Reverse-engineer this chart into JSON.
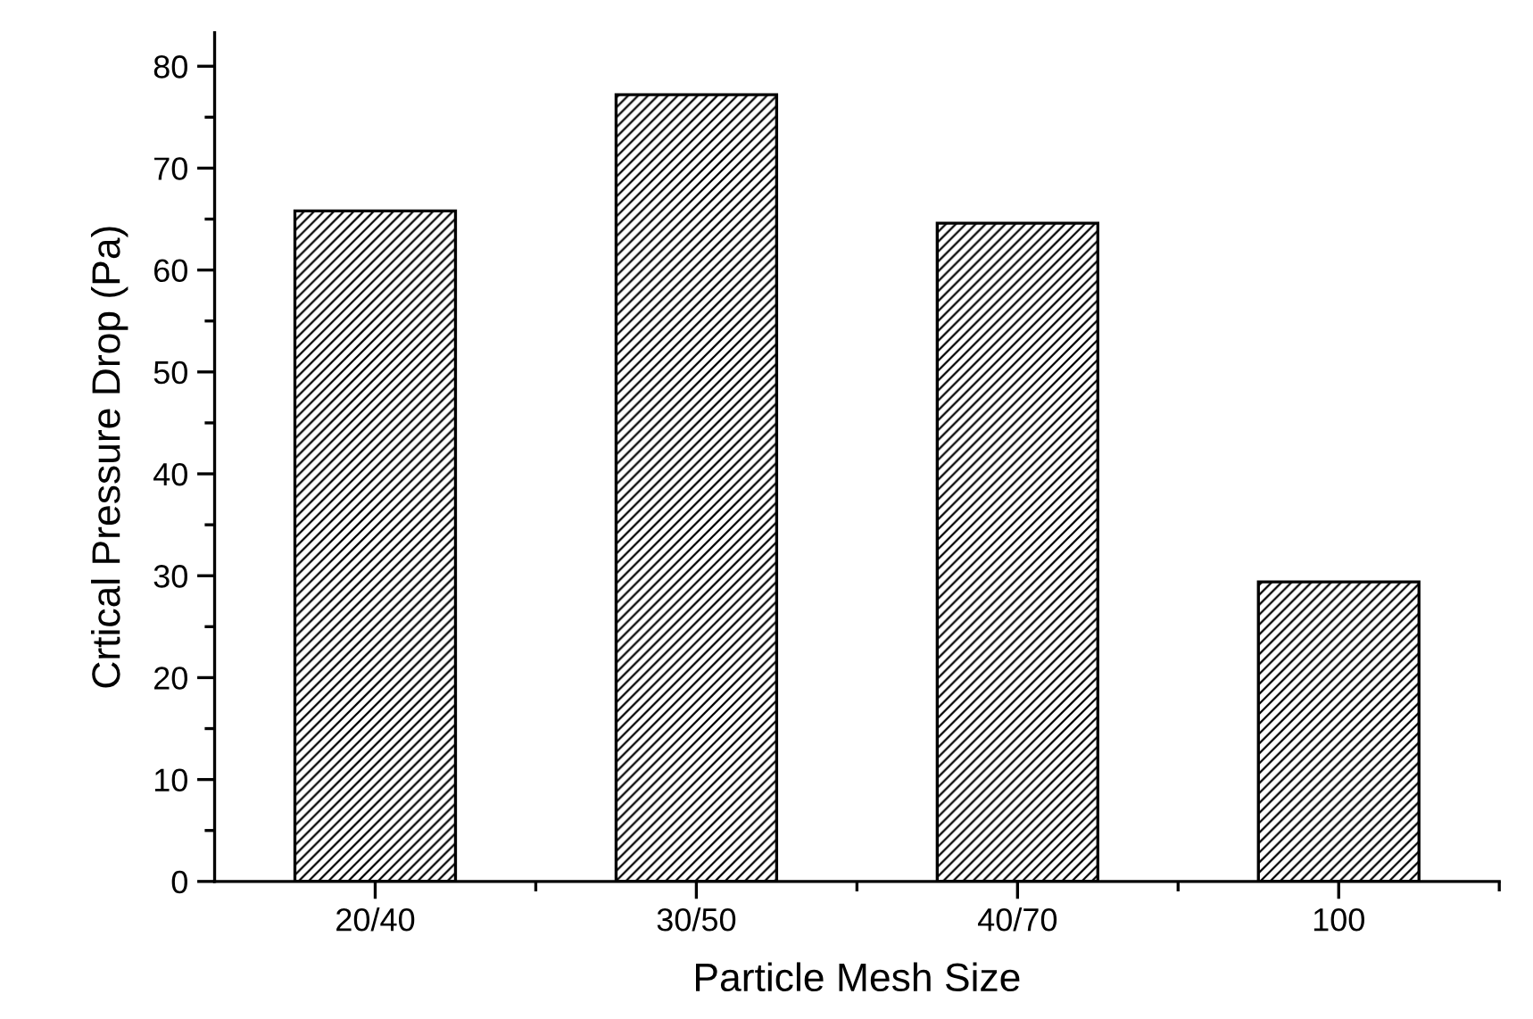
{
  "chart_data": {
    "type": "bar",
    "xlabel": "Particle Mesh Size",
    "ylabel": "Crtical Pressure Drop (Pa)",
    "categories": [
      "20/40",
      "30/50",
      "40/70",
      "100"
    ],
    "values": [
      65.8,
      77.2,
      64.6,
      29.4
    ],
    "color": "#000000",
    "ylim": [
      0,
      83.3
    ],
    "yticks": [
      0,
      10,
      20,
      30,
      40,
      50,
      60,
      70,
      80
    ],
    "grid": false,
    "legend": false
  }
}
